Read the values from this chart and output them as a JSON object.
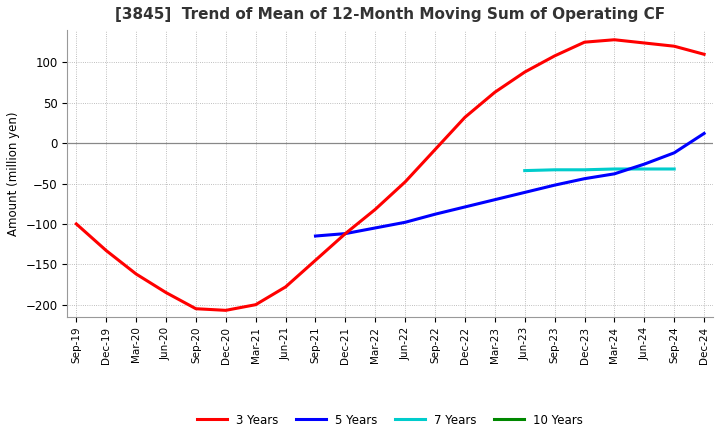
{
  "title": "[3845]  Trend of Mean of 12-Month Moving Sum of Operating CF",
  "ylabel": "Amount (million yen)",
  "background_color": "#ffffff",
  "ylim": [
    -215,
    140
  ],
  "yticks": [
    100,
    50,
    0,
    -50,
    -100,
    -150,
    -200
  ],
  "legend": [
    "3 Years",
    "5 Years",
    "7 Years",
    "10 Years"
  ],
  "line_colors": [
    "#ff0000",
    "#0000ff",
    "#00cccc",
    "#008800"
  ],
  "x_labels": [
    "Sep-19",
    "Dec-19",
    "Mar-20",
    "Jun-20",
    "Sep-20",
    "Dec-20",
    "Mar-21",
    "Jun-21",
    "Sep-21",
    "Dec-21",
    "Mar-22",
    "Jun-22",
    "Sep-22",
    "Dec-22",
    "Mar-23",
    "Jun-23",
    "Sep-23",
    "Dec-23",
    "Mar-24",
    "Jun-24",
    "Sep-24",
    "Dec-24"
  ],
  "series_3y_x": [
    0,
    1,
    2,
    3,
    4,
    5,
    6,
    7,
    8,
    9,
    10,
    11,
    12,
    13,
    14,
    15,
    16,
    17,
    18,
    19,
    20,
    21
  ],
  "series_3y_y": [
    -100,
    -133,
    -162,
    -185,
    -205,
    -207,
    -200,
    -178,
    -145,
    -112,
    -82,
    -48,
    -8,
    32,
    63,
    88,
    108,
    125,
    128,
    124,
    120,
    110
  ],
  "series_5y_x": [
    8,
    9,
    10,
    11,
    12,
    13,
    14,
    15,
    16,
    17,
    18,
    19,
    20,
    21
  ],
  "series_5y_y": [
    -115,
    -112,
    -105,
    -98,
    -88,
    -79,
    -70,
    -61,
    -52,
    -44,
    -38,
    -26,
    -12,
    12
  ],
  "series_7y_x": [
    15,
    16,
    17,
    18,
    19,
    20
  ],
  "series_7y_y": [
    -34,
    -33,
    -33,
    -32,
    -32,
    -32
  ],
  "series_10y_x": [],
  "series_10y_y": []
}
